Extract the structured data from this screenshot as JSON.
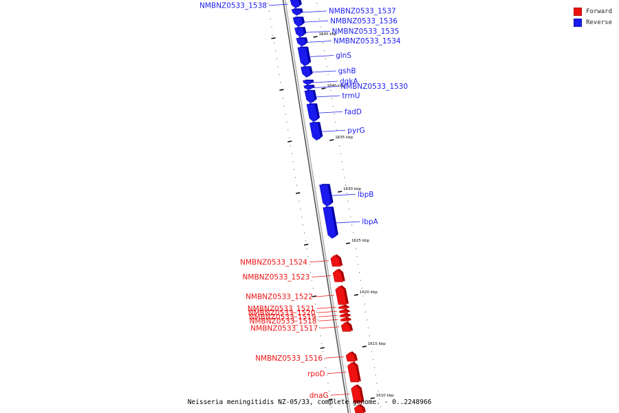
{
  "colors": {
    "forward": "#ee1111",
    "reverse": "#1a1aee",
    "backbone": "#888888",
    "leader": "#3a3a3a"
  },
  "legend": [
    {
      "label": "Forward",
      "strand": "forward",
      "color": "#ee1111"
    },
    {
      "label": "Reverse",
      "strand": "reverse",
      "color": "#1a1aee"
    }
  ],
  "caption": "Neisseria meningitidis NZ-05/33, complete genome. - 0..2248966",
  "scale": {
    "top_kbp": 1648.6,
    "bottom_kbp": 1608.6
  },
  "ticks": [
    {
      "kbp": 1645,
      "label": "1645 kbp"
    },
    {
      "kbp": 1640,
      "label": "1640 kbp"
    },
    {
      "kbp": 1635,
      "label": "1635 kbp"
    },
    {
      "kbp": 1630,
      "label": "1630 kbp"
    },
    {
      "kbp": 1625,
      "label": "1625 kbp"
    },
    {
      "kbp": 1620,
      "label": "1620 kbp"
    },
    {
      "kbp": 1615,
      "label": "1615 kbp"
    },
    {
      "kbp": 1610,
      "label": "1610 kbp"
    }
  ],
  "genes": [
    {
      "name": "NMBNZ0533_1538",
      "strand": "reverse",
      "start_kbp": 1648.6,
      "end_kbp": 1647.8,
      "label_side": "left"
    },
    {
      "name": "NMBNZ0533_1537",
      "strand": "reverse",
      "start_kbp": 1647.7,
      "end_kbp": 1647.1,
      "label_side": "right"
    },
    {
      "name": "NMBNZ0533_1536",
      "strand": "reverse",
      "start_kbp": 1646.9,
      "end_kbp": 1646.0,
      "label_side": "right"
    },
    {
      "name": "NMBNZ0533_1535",
      "strand": "reverse",
      "start_kbp": 1645.9,
      "end_kbp": 1645.0,
      "label_side": "right"
    },
    {
      "name": "NMBNZ0533_1534",
      "strand": "reverse",
      "start_kbp": 1644.9,
      "end_kbp": 1644.1,
      "label_side": "right"
    },
    {
      "name": "glnS",
      "strand": "reverse",
      "start_kbp": 1644.0,
      "end_kbp": 1642.2,
      "label_side": "right"
    },
    {
      "name": "gshB",
      "strand": "reverse",
      "start_kbp": 1642.1,
      "end_kbp": 1641.1,
      "label_side": "right"
    },
    {
      "name": "dgkA",
      "strand": "reverse",
      "start_kbp": 1640.8,
      "end_kbp": 1640.4,
      "label_side": "right"
    },
    {
      "name": "NMBNZ0533_1530",
      "strand": "reverse",
      "start_kbp": 1640.3,
      "end_kbp": 1639.9,
      "label_side": "right"
    },
    {
      "name": "trmU",
      "strand": "reverse",
      "start_kbp": 1639.8,
      "end_kbp": 1638.6,
      "label_side": "right"
    },
    {
      "name": "fadD",
      "strand": "reverse",
      "start_kbp": 1638.5,
      "end_kbp": 1636.8,
      "label_side": "right"
    },
    {
      "name": "pyrG",
      "strand": "reverse",
      "start_kbp": 1636.7,
      "end_kbp": 1635.0,
      "label_side": "right"
    },
    {
      "name": "lbpB",
      "strand": "reverse",
      "start_kbp": 1630.7,
      "end_kbp": 1628.6,
      "label_side": "right"
    },
    {
      "name": "lbpA",
      "strand": "reverse",
      "start_kbp": 1628.5,
      "end_kbp": 1625.5,
      "label_side": "right"
    },
    {
      "name": "NMBNZ0533_1524",
      "strand": "forward",
      "start_kbp": 1623.9,
      "end_kbp": 1622.8,
      "label_side": "left"
    },
    {
      "name": "NMBNZ0533_1523",
      "strand": "forward",
      "start_kbp": 1622.5,
      "end_kbp": 1621.3,
      "label_side": "left"
    },
    {
      "name": "NMBNZ0533_1522",
      "strand": "forward",
      "start_kbp": 1620.9,
      "end_kbp": 1619.1,
      "label_side": "left"
    },
    {
      "name": "NMBNZ0533_1521",
      "strand": "forward",
      "start_kbp": 1619.0,
      "end_kbp": 1618.7,
      "label_side": "left"
    },
    {
      "name": "NMBNZ0533_1520",
      "strand": "forward",
      "start_kbp": 1618.6,
      "end_kbp": 1618.3,
      "label_side": "left"
    },
    {
      "name": "NMBNZ0533_1519",
      "strand": "forward",
      "start_kbp": 1618.2,
      "end_kbp": 1617.9,
      "label_side": "left"
    },
    {
      "name": "NMBNZ0533_1518",
      "strand": "forward",
      "start_kbp": 1617.8,
      "end_kbp": 1617.5,
      "label_side": "left"
    },
    {
      "name": "NMBNZ0533_1517",
      "strand": "forward",
      "start_kbp": 1617.4,
      "end_kbp": 1616.5,
      "label_side": "left"
    },
    {
      "name": "NMBNZ0533_1516",
      "strand": "forward",
      "start_kbp": 1614.5,
      "end_kbp": 1613.6,
      "label_side": "left"
    },
    {
      "name": "rpoD",
      "strand": "forward",
      "start_kbp": 1613.5,
      "end_kbp": 1611.6,
      "label_side": "left"
    },
    {
      "name": "dnaG",
      "strand": "forward",
      "start_kbp": 1611.3,
      "end_kbp": 1609.6,
      "label_side": "left"
    },
    {
      "name": "",
      "strand": "forward",
      "start_kbp": 1609.4,
      "end_kbp": 1608.6,
      "label_side": "none"
    }
  ]
}
